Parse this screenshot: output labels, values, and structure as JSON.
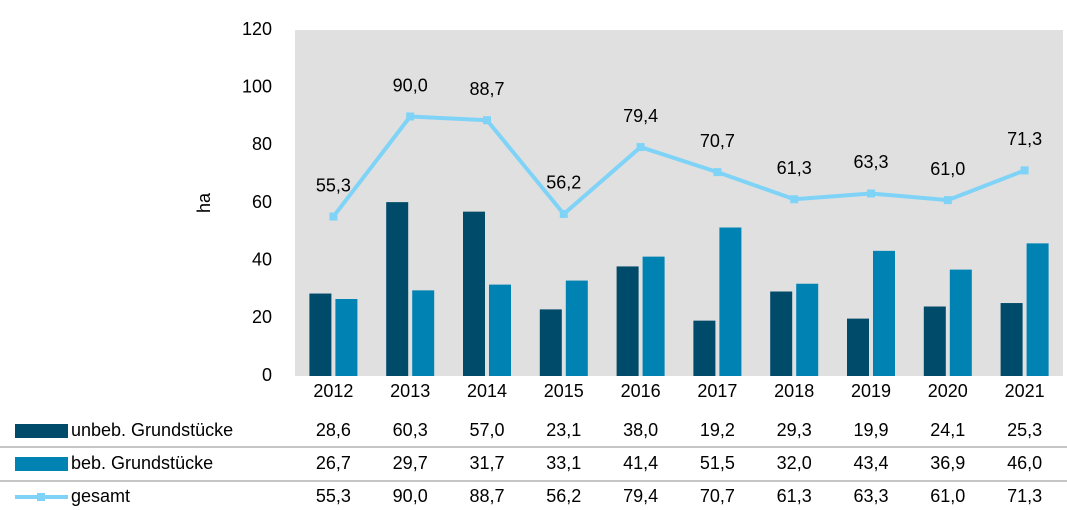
{
  "chart_data": {
    "type": "bar-line",
    "y_label": "ha",
    "categories": [
      "2012",
      "2013",
      "2014",
      "2015",
      "2016",
      "2017",
      "2018",
      "2019",
      "2020",
      "2021"
    ],
    "series": [
      {
        "name": "unbeb. Grundstücke",
        "type": "bar",
        "color": "#004a6a",
        "values": [
          28.6,
          60.3,
          57.0,
          23.1,
          38.0,
          19.2,
          29.3,
          19.9,
          24.1,
          25.3
        ],
        "value_labels": [
          "28,6",
          "60,3",
          "57,0",
          "23,1",
          "38,0",
          "19,2",
          "29,3",
          "19,9",
          "24,1",
          "25,3"
        ]
      },
      {
        "name": "beb. Grundstücke",
        "type": "bar",
        "color": "#0083b3",
        "values": [
          26.7,
          29.7,
          31.7,
          33.1,
          41.4,
          51.5,
          32.0,
          43.4,
          36.9,
          46.0
        ],
        "value_labels": [
          "26,7",
          "29,7",
          "31,7",
          "33,1",
          "41,4",
          "51,5",
          "32,0",
          "43,4",
          "36,9",
          "46,0"
        ]
      },
      {
        "name": "gesamt",
        "type": "line",
        "color": "#7fd3f7",
        "values": [
          55.3,
          90.0,
          88.7,
          56.2,
          79.4,
          70.7,
          61.3,
          63.3,
          61.0,
          71.3
        ],
        "value_labels": [
          "55,3",
          "90,0",
          "88,7",
          "56,2",
          "79,4",
          "70,7",
          "61,3",
          "63,3",
          "61,0",
          "71,3"
        ]
      }
    ],
    "ylim": [
      0,
      120
    ],
    "yticks": [
      0,
      20,
      40,
      60,
      80,
      100,
      120
    ],
    "grid": false,
    "plot_background": "#e0e0e0"
  }
}
